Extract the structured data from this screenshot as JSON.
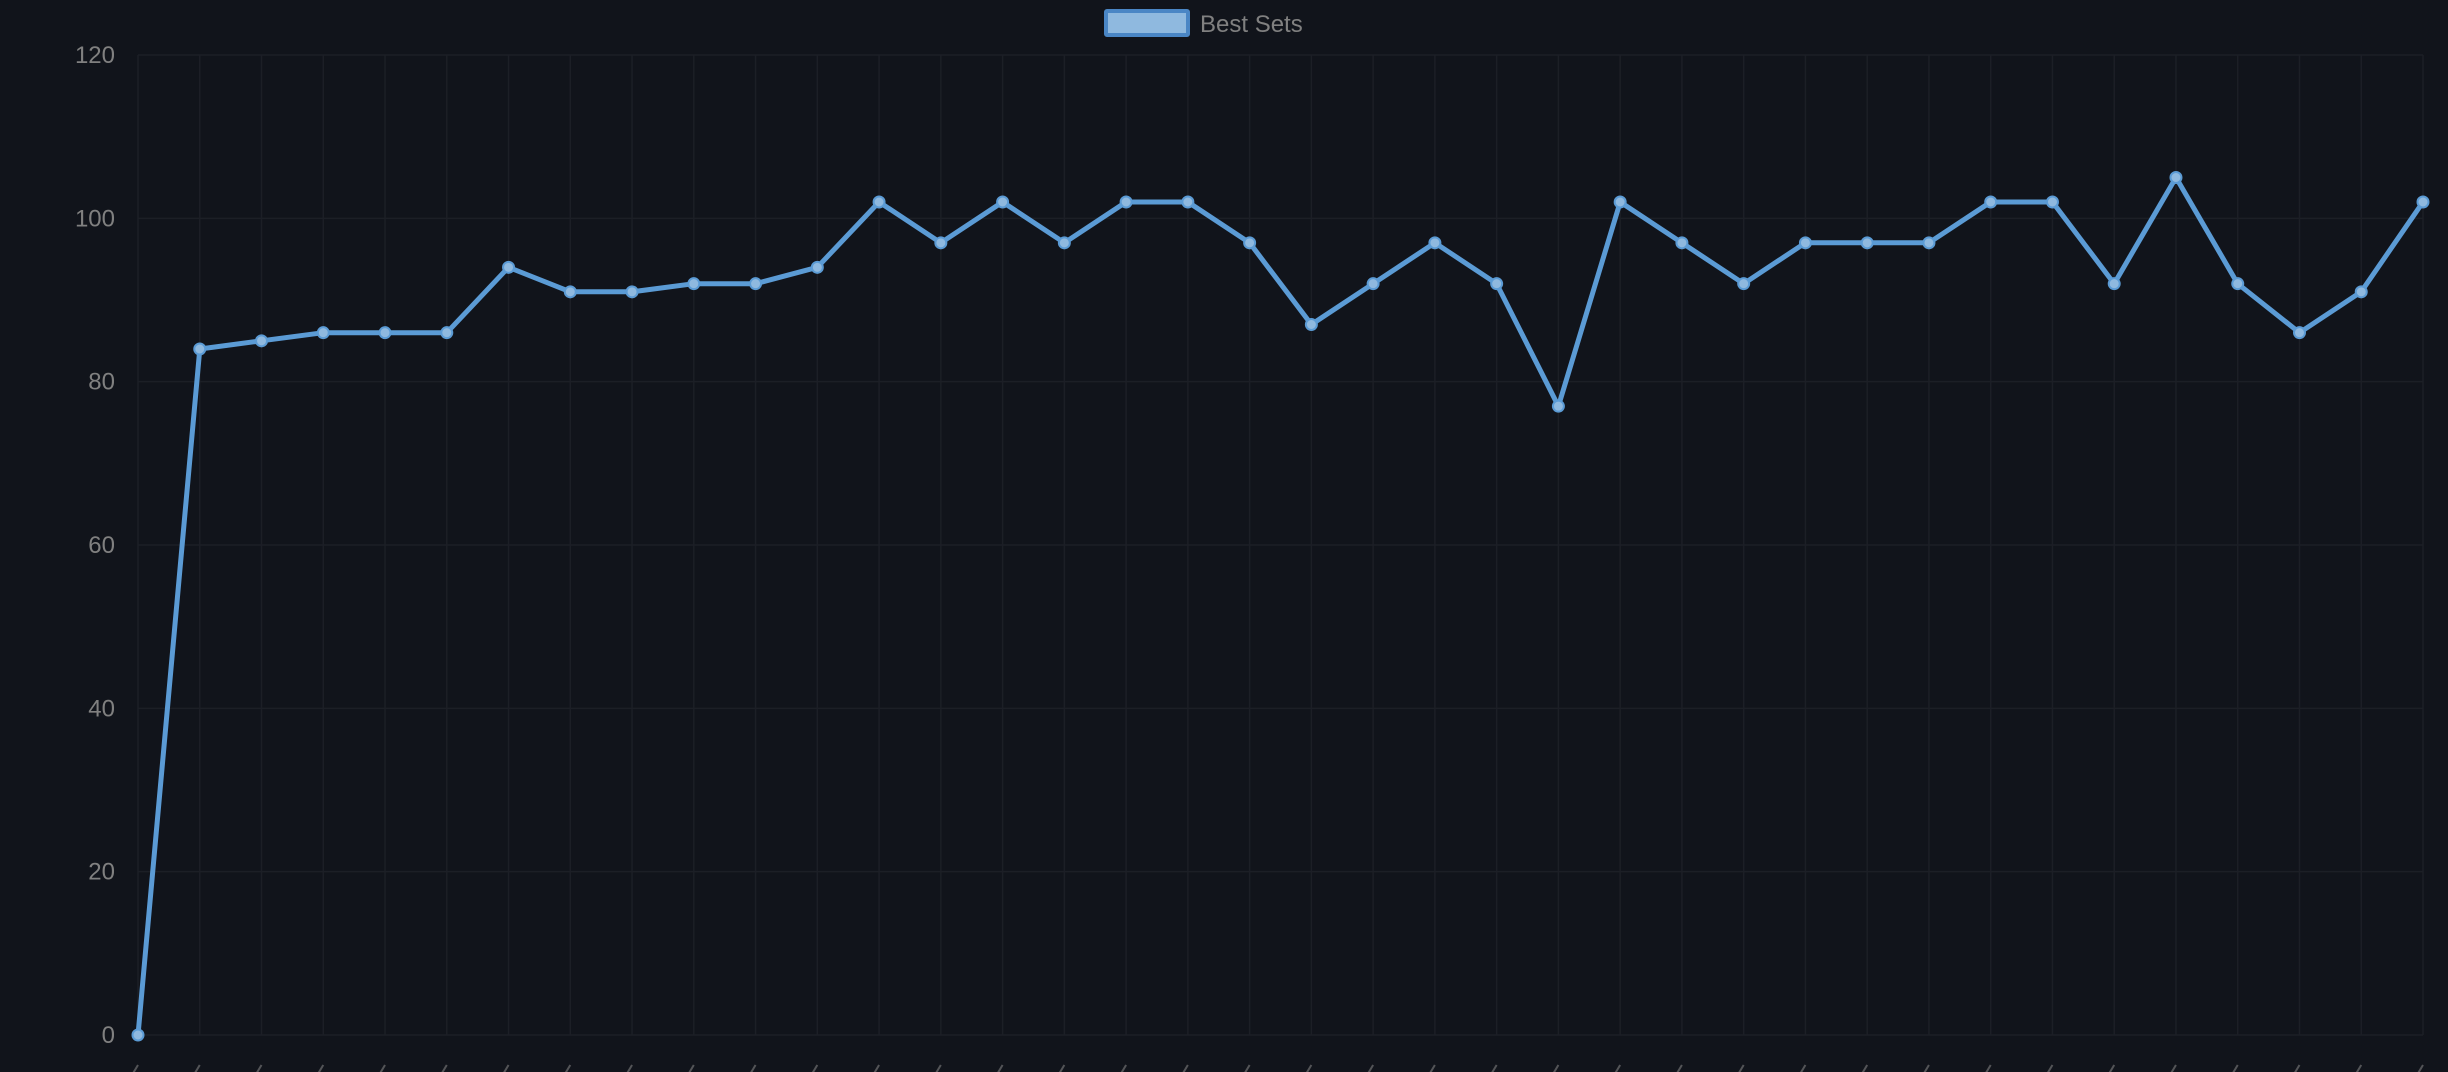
{
  "colors": {
    "background": "#11141b",
    "grid": "#1c1f26",
    "series_line": "#5b9bd5",
    "legend_fill": "#8fb9df",
    "legend_border": "#4a86c5",
    "tick_text": "#808080",
    "legend_text": "#808080"
  },
  "chart_data": {
    "type": "line",
    "title": "",
    "xlabel": "",
    "ylabel": "",
    "ylim": [
      0,
      120
    ],
    "yticks": [
      0,
      20,
      40,
      60,
      80,
      100,
      120
    ],
    "grid": true,
    "legend_position": "top-center",
    "series": [
      {
        "name": "Best Sets",
        "values": [
          0,
          84,
          85,
          86,
          86,
          86,
          94,
          91,
          91,
          92,
          92,
          94,
          102,
          97,
          102,
          97,
          102,
          102,
          97,
          87,
          92,
          97,
          92,
          77,
          102,
          97,
          92,
          97,
          97,
          97,
          102,
          102,
          92,
          105,
          92,
          86,
          91,
          102
        ]
      }
    ]
  }
}
